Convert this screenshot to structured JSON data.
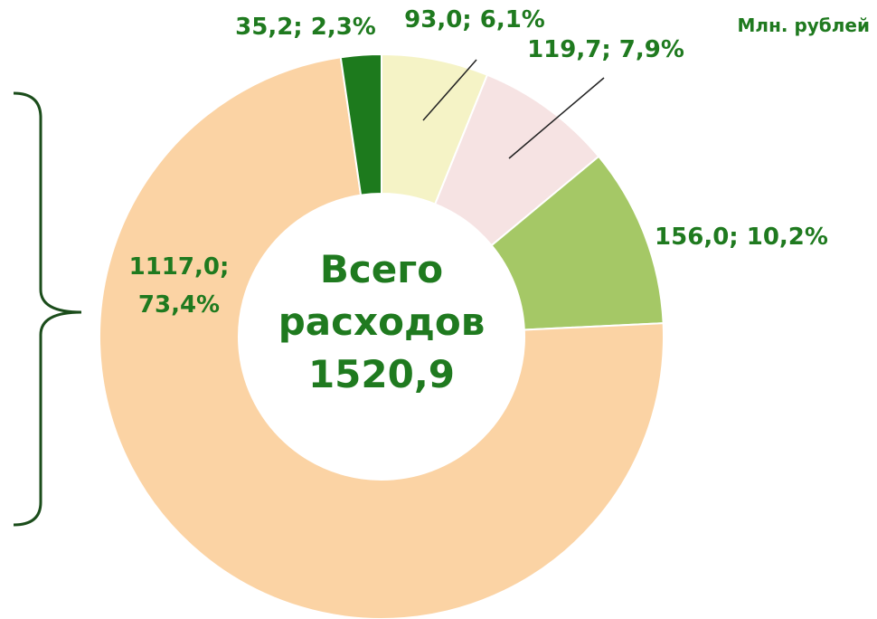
{
  "chart_data": {
    "type": "donut",
    "subtitle": "Млн. рублей",
    "center_text": [
      "Всего",
      "расходов",
      "1520,9"
    ],
    "categories": [
      null,
      null,
      null,
      null,
      null
    ],
    "values": [
      93.0,
      119.7,
      156.0,
      1117.0,
      35.2
    ],
    "value_labels": [
      "93,0; 6,1%",
      "119,7; 7,9%",
      "156,0; 10,2%",
      "1117,0; 73,4%",
      "35,2; 2,3%"
    ],
    "colors": [
      "#f5f3c6",
      "#f6e3e3",
      "#a5c866",
      "#fbd3a4",
      "#1d7a1d"
    ]
  }
}
